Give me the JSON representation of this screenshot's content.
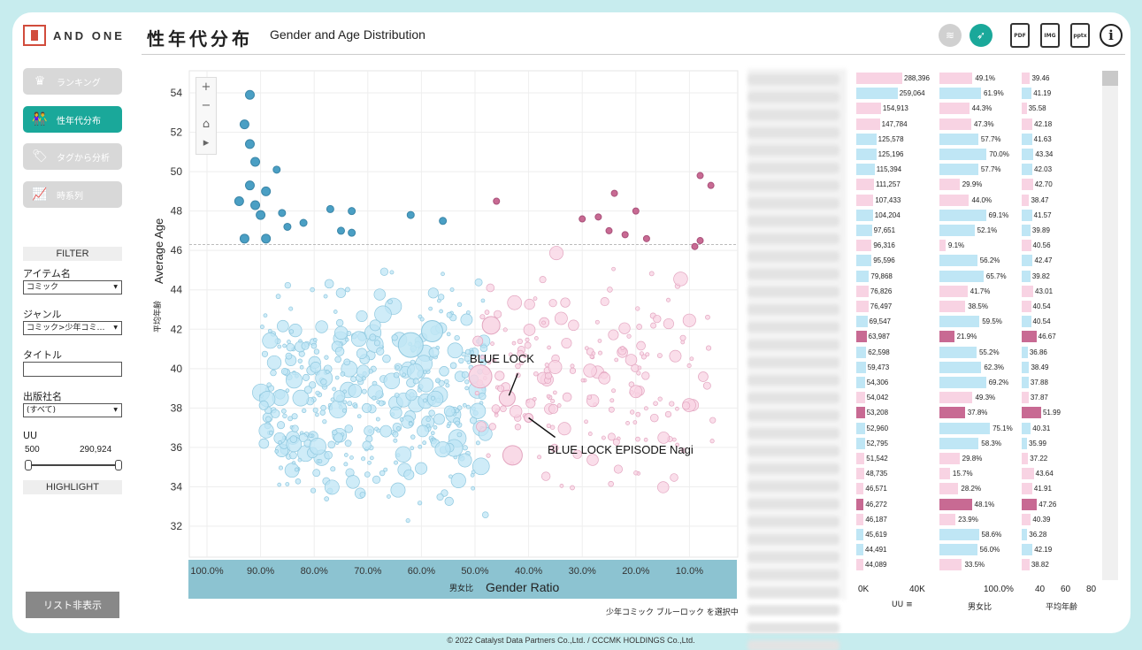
{
  "header": {
    "logo_text": "AND ONE",
    "title": "性年代分布",
    "subtitle": "Gender and Age Distribution",
    "export_pdf": "PDF",
    "export_img": "IMG",
    "export_pptx": "pptx",
    "info": "i"
  },
  "nav": [
    {
      "label": "ランキング",
      "icon": "crown-icon",
      "glyph": "♛",
      "active": false
    },
    {
      "label": "性年代分布",
      "icon": "people-icon",
      "glyph": "👫",
      "active": true
    },
    {
      "label": "タグから分析",
      "icon": "tag-icon",
      "glyph": "🏷",
      "active": false
    },
    {
      "label": "時系列",
      "icon": "line-chart-icon",
      "glyph": "📈",
      "active": false
    }
  ],
  "filter": {
    "heading": "FILTER",
    "item_label": "アイテム名",
    "item_value": "コミック",
    "genre_label": "ジャンル",
    "genre_value": "コミック>少年コミ…",
    "title_label": "タイトル",
    "publisher_label": "出版社名",
    "publisher_value": "(すべて)",
    "uu_label": "UU",
    "uu_min": "500",
    "uu_max": "290,924",
    "highlight": "HIGHLIGHT",
    "list_button": "リスト非表示"
  },
  "chart_data": {
    "type": "scatter",
    "ylabel": "Average Age",
    "ylabel_ja": "平均年齢",
    "xlabel": "Gender Ratio",
    "xlabel_ja": "男女比",
    "x_ticks": [
      "100.0%",
      "90.0%",
      "80.0%",
      "70.0%",
      "60.0%",
      "50.0%",
      "40.0%",
      "30.0%",
      "20.0%",
      "10.0%"
    ],
    "y_ticks": [
      54,
      52,
      50,
      48,
      46,
      44,
      42,
      40,
      38,
      36,
      34,
      32
    ],
    "xlim": [
      100,
      0
    ],
    "ylim": [
      31,
      55
    ],
    "reference_age": 46.3,
    "annotations": [
      {
        "text": "BLUE LOCK",
        "x": 44.0,
        "y": 38.5
      },
      {
        "text": "BLUE LOCK EPISODE Nagi",
        "x": 40.0,
        "y": 37.5
      }
    ],
    "highlight_points": [
      {
        "x": 44.0,
        "y": 38.5,
        "r": 9
      },
      {
        "x": 40.0,
        "y": 37.5,
        "r": 5
      },
      {
        "x": 43.0,
        "y": 35.6,
        "r": 11
      },
      {
        "x": 49.0,
        "y": 39.6,
        "r": 13
      },
      {
        "x": 47.0,
        "y": 42.2,
        "r": 10
      },
      {
        "x": 62.0,
        "y": 41.2,
        "r": 14
      },
      {
        "x": 58.0,
        "y": 41.9,
        "r": 12
      }
    ],
    "blue_dark_points": [
      [
        92,
        53.9
      ],
      [
        93,
        52.4
      ],
      [
        92,
        51.4
      ],
      [
        91,
        50.5
      ],
      [
        92,
        49.3
      ],
      [
        91,
        48.3
      ],
      [
        90,
        47.8
      ],
      [
        86,
        47.9
      ],
      [
        82,
        47.4
      ],
      [
        77,
        48.1
      ],
      [
        73,
        48.0
      ],
      [
        75,
        47.0
      ],
      [
        89,
        46.6
      ],
      [
        93,
        46.6
      ],
      [
        85,
        47.2
      ],
      [
        62,
        47.8
      ],
      [
        56,
        47.5
      ],
      [
        94,
        48.5
      ],
      [
        89,
        49.0
      ],
      [
        87,
        50.1
      ],
      [
        73,
        46.9
      ]
    ],
    "pink_dark_points": [
      [
        46,
        48.5
      ],
      [
        30,
        47.6
      ],
      [
        27,
        47.7
      ],
      [
        25,
        47.0
      ],
      [
        20,
        48.0
      ],
      [
        22,
        46.8
      ],
      [
        8,
        49.8
      ],
      [
        6,
        49.3
      ],
      [
        9,
        46.2
      ],
      [
        8,
        46.5
      ],
      [
        24,
        48.9
      ],
      [
        18,
        46.6
      ]
    ],
    "selection_note": "少年コミック ブルーロック を選択中"
  },
  "list": {
    "uu_axis": [
      "0K",
      "40K"
    ],
    "ratio_axis": "100.0%",
    "age_axis": [
      "40",
      "60",
      "80"
    ],
    "col_uu": "UU",
    "col_ratio": "男女比",
    "col_age": "平均年齢",
    "rows": [
      {
        "uu": "288,396",
        "ratio": "49.1%",
        "age": "39.46",
        "f": "p"
      },
      {
        "uu": "259,064",
        "ratio": "61.9%",
        "age": "41.19",
        "f": "b"
      },
      {
        "uu": "154,913",
        "ratio": "44.3%",
        "age": "35.58",
        "f": "p"
      },
      {
        "uu": "147,784",
        "ratio": "47.3%",
        "age": "42.18",
        "f": "p"
      },
      {
        "uu": "125,578",
        "ratio": "57.7%",
        "age": "41.63",
        "f": "b"
      },
      {
        "uu": "125,196",
        "ratio": "70.0%",
        "age": "43.34",
        "f": "b"
      },
      {
        "uu": "115,394",
        "ratio": "57.7%",
        "age": "42.03",
        "f": "b"
      },
      {
        "uu": "111,257",
        "ratio": "29.9%",
        "age": "42.70",
        "f": "p"
      },
      {
        "uu": "107,433",
        "ratio": "44.0%",
        "age": "38.47",
        "f": "p"
      },
      {
        "uu": "104,204",
        "ratio": "69.1%",
        "age": "41.57",
        "f": "b"
      },
      {
        "uu": "97,651",
        "ratio": "52.1%",
        "age": "39.89",
        "f": "b"
      },
      {
        "uu": "96,316",
        "ratio": "9.1%",
        "age": "40.56",
        "f": "p"
      },
      {
        "uu": "95,596",
        "ratio": "56.2%",
        "age": "42.47",
        "f": "b"
      },
      {
        "uu": "79,868",
        "ratio": "65.7%",
        "age": "39.82",
        "f": "b"
      },
      {
        "uu": "76,826",
        "ratio": "41.7%",
        "age": "43.01",
        "f": "p"
      },
      {
        "uu": "76,497",
        "ratio": "38.5%",
        "age": "40.54",
        "f": "p"
      },
      {
        "uu": "69,547",
        "ratio": "59.5%",
        "age": "40.54",
        "f": "b"
      },
      {
        "uu": "63,987",
        "ratio": "21.9%",
        "age": "46.67",
        "f": "d"
      },
      {
        "uu": "62,598",
        "ratio": "55.2%",
        "age": "36.86",
        "f": "b"
      },
      {
        "uu": "59,473",
        "ratio": "62.3%",
        "age": "38.49",
        "f": "b"
      },
      {
        "uu": "54,306",
        "ratio": "69.2%",
        "age": "37.88",
        "f": "b"
      },
      {
        "uu": "54,042",
        "ratio": "49.3%",
        "age": "37.87",
        "f": "p"
      },
      {
        "uu": "53,208",
        "ratio": "37.8%",
        "age": "51.99",
        "f": "d"
      },
      {
        "uu": "52,960",
        "ratio": "75.1%",
        "age": "40.31",
        "f": "b"
      },
      {
        "uu": "52,795",
        "ratio": "58.3%",
        "age": "35.99",
        "f": "b"
      },
      {
        "uu": "51,542",
        "ratio": "29.8%",
        "age": "37.22",
        "f": "p"
      },
      {
        "uu": "48,735",
        "ratio": "15.7%",
        "age": "43.64",
        "f": "p"
      },
      {
        "uu": "46,571",
        "ratio": "28.2%",
        "age": "41.91",
        "f": "p"
      },
      {
        "uu": "46,272",
        "ratio": "48.1%",
        "age": "47.26",
        "f": "d"
      },
      {
        "uu": "46,187",
        "ratio": "23.9%",
        "age": "40.39",
        "f": "p"
      },
      {
        "uu": "45,619",
        "ratio": "58.6%",
        "age": "36.28",
        "f": "b"
      },
      {
        "uu": "44,491",
        "ratio": "56.0%",
        "age": "42.19",
        "f": "b"
      },
      {
        "uu": "44,089",
        "ratio": "33.5%",
        "age": "38.82",
        "f": "p"
      }
    ]
  },
  "footer": "© 2022 Catalyst Data Partners Co.,Ltd. / CCCMK HOLDINGS Co.,Ltd.",
  "colors": {
    "teal": "#1aa89a",
    "blue_light": "#bfe6f5",
    "blue_dark": "#4a9fc4",
    "pink_light": "#f8d3e3",
    "pink_dark": "#c86a93",
    "band": "#8cc3d1"
  }
}
